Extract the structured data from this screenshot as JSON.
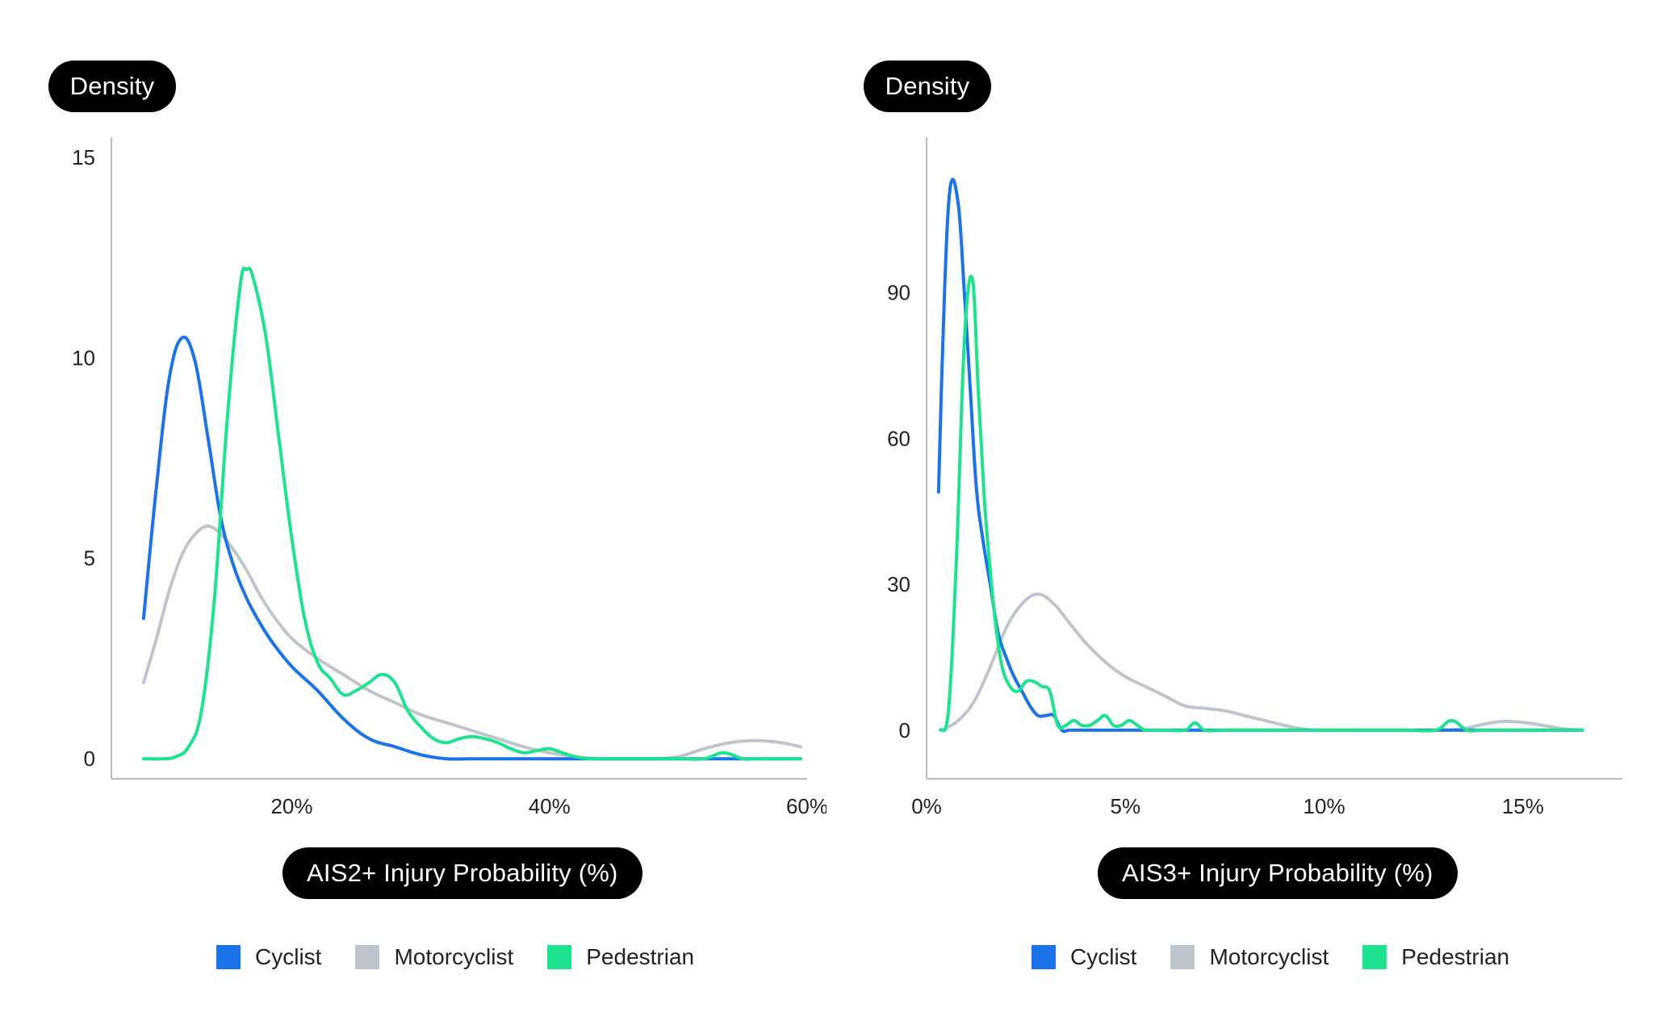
{
  "colors": {
    "cyclist": "#1a73e8",
    "motorcyclist": "#bfc5cc",
    "pedestrian": "#1de38e",
    "axis": "#bbbbbb"
  },
  "chart_data": [
    {
      "type": "line",
      "ylabel": "Density",
      "xlabel": "AIS2+ Injury Probability (%)",
      "xlim": [
        6,
        60
      ],
      "ylim": [
        -0.5,
        15.5
      ],
      "x_ticks": [
        {
          "v": 20,
          "label": "20%"
        },
        {
          "v": 40,
          "label": "40%"
        },
        {
          "v": 60,
          "label": "60%"
        }
      ],
      "y_ticks": [
        {
          "v": 0,
          "label": "0"
        },
        {
          "v": 5,
          "label": "5"
        },
        {
          "v": 10,
          "label": "10"
        },
        {
          "v": 15,
          "label": "15"
        }
      ],
      "legend_position": "bottom",
      "series": [
        {
          "name": "Cyclist",
          "color_key": "cyclist",
          "x": [
            8.5,
            9.5,
            10.5,
            11.5,
            12.5,
            13.5,
            14.5,
            15.5,
            16.5,
            17.5,
            18.5,
            20,
            22,
            24,
            26,
            28,
            30,
            32,
            34,
            36,
            38,
            40,
            42,
            44,
            46,
            48,
            50,
            52,
            54,
            56,
            58,
            59.5
          ],
          "y": [
            3.5,
            6.8,
            9.5,
            10.5,
            9.9,
            8.0,
            6.0,
            4.8,
            4.0,
            3.4,
            2.9,
            2.3,
            1.7,
            1.0,
            0.5,
            0.3,
            0.1,
            0,
            0,
            0,
            0,
            0,
            0,
            0,
            0,
            0,
            0,
            0,
            0,
            0,
            0,
            0
          ]
        },
        {
          "name": "Motorcyclist",
          "color_key": "motorcyclist",
          "x": [
            8.5,
            9.5,
            10.5,
            11.5,
            12.5,
            13.5,
            14.5,
            15.5,
            16.5,
            17.5,
            18.5,
            20,
            22,
            24,
            26,
            28,
            30,
            32,
            34,
            36,
            38,
            40,
            42,
            44,
            46,
            48,
            50,
            52,
            54,
            56,
            58,
            59.5
          ],
          "y": [
            1.9,
            3.0,
            4.2,
            5.1,
            5.6,
            5.8,
            5.6,
            5.2,
            4.7,
            4.1,
            3.6,
            3.0,
            2.5,
            2.1,
            1.7,
            1.4,
            1.1,
            0.9,
            0.7,
            0.5,
            0.3,
            0.15,
            0.05,
            0,
            0,
            0,
            0.05,
            0.25,
            0.4,
            0.45,
            0.4,
            0.3
          ]
        },
        {
          "name": "Pedestrian",
          "color_key": "pedestrian",
          "x": [
            8.5,
            10,
            11,
            12,
            13,
            14,
            15,
            16,
            16.5,
            17,
            18,
            19,
            20,
            21,
            22,
            23,
            24,
            25,
            26,
            27,
            28,
            29,
            30,
            31,
            32,
            33,
            34,
            35,
            36,
            37,
            38,
            39,
            40,
            41,
            42,
            43,
            44,
            46,
            48,
            50,
            52,
            53.5,
            55,
            56,
            58,
            59.5
          ],
          "y": [
            0,
            0,
            0.05,
            0.3,
            1.2,
            4.0,
            8.5,
            11.8,
            12.2,
            12.0,
            10.5,
            8.0,
            5.5,
            3.5,
            2.4,
            2.0,
            1.6,
            1.7,
            1.9,
            2.1,
            1.9,
            1.2,
            0.8,
            0.5,
            0.4,
            0.5,
            0.55,
            0.5,
            0.4,
            0.25,
            0.15,
            0.2,
            0.25,
            0.15,
            0.05,
            0,
            0,
            0,
            0,
            0,
            0,
            0.15,
            0,
            0,
            0,
            0
          ]
        }
      ]
    },
    {
      "type": "line",
      "ylabel": "Density",
      "xlabel": "AIS3+ Injury Probability (%)",
      "xlim": [
        0,
        17.5
      ],
      "ylim": [
        -10,
        122
      ],
      "x_ticks": [
        {
          "v": 0,
          "label": "0%"
        },
        {
          "v": 5,
          "label": "5%"
        },
        {
          "v": 10,
          "label": "10%"
        },
        {
          "v": 15,
          "label": "15%"
        }
      ],
      "y_ticks": [
        {
          "v": 0,
          "label": "0"
        },
        {
          "v": 30,
          "label": "30"
        },
        {
          "v": 60,
          "label": "60"
        },
        {
          "v": 90,
          "label": "90"
        }
      ],
      "legend_position": "bottom",
      "series": [
        {
          "name": "Cyclist",
          "color_key": "cyclist",
          "x": [
            0.3,
            0.45,
            0.6,
            0.8,
            0.95,
            1.1,
            1.25,
            1.4,
            1.6,
            1.8,
            2.0,
            2.2,
            2.4,
            2.6,
            2.8,
            3.0,
            3.2,
            3.4,
            3.6,
            4.0,
            5.0,
            6.0,
            7.0,
            8.0,
            10,
            12,
            13,
            14,
            15,
            16.5
          ],
          "y": [
            49,
            90,
            112,
            108,
            90,
            70,
            50,
            40,
            30,
            20,
            15,
            11,
            8,
            5,
            3,
            3,
            3,
            0,
            0,
            0,
            0,
            0,
            0,
            0,
            0,
            0,
            0,
            0,
            0,
            0
          ]
        },
        {
          "name": "Motorcyclist",
          "color_key": "motorcyclist",
          "x": [
            0.4,
            0.8,
            1.2,
            1.6,
            2.0,
            2.4,
            2.8,
            3.2,
            3.6,
            4.0,
            4.5,
            5.0,
            5.5,
            6.0,
            6.5,
            7.0,
            7.5,
            8.0,
            8.5,
            9.0,
            9.5,
            10,
            11,
            12,
            13,
            13.5,
            14,
            14.5,
            15,
            15.5,
            16,
            16.5
          ],
          "y": [
            0,
            2,
            6,
            13,
            21,
            26,
            28,
            26,
            22,
            18,
            14,
            11,
            9,
            7,
            5,
            4.5,
            4,
            3,
            2,
            1,
            0.2,
            0,
            0,
            0,
            0,
            0.3,
            1.2,
            1.8,
            1.6,
            1,
            0.3,
            0
          ]
        },
        {
          "name": "Pedestrian",
          "color_key": "pedestrian",
          "x": [
            0.35,
            0.55,
            0.75,
            0.95,
            1.15,
            1.3,
            1.45,
            1.6,
            1.75,
            1.9,
            2.1,
            2.3,
            2.5,
            2.7,
            2.9,
            3.1,
            3.3,
            3.5,
            3.7,
            3.9,
            4.1,
            4.3,
            4.5,
            4.7,
            4.9,
            5.1,
            5.3,
            5.5,
            5.7,
            6.0,
            6.5,
            6.75,
            7.0,
            7.5,
            8.0,
            9.0,
            10,
            11,
            12,
            12.8,
            13.2,
            13.6,
            14,
            15,
            16.5
          ],
          "y": [
            0,
            4,
            35,
            80,
            93,
            70,
            48,
            33,
            21,
            13,
            9,
            8,
            10,
            10,
            9,
            8,
            1,
            1,
            2,
            1,
            1,
            2,
            3,
            1,
            1,
            2,
            1,
            0,
            0,
            0,
            0,
            1.5,
            0,
            0,
            0,
            0,
            0,
            0,
            0,
            0,
            2,
            0,
            0,
            0,
            0
          ]
        }
      ]
    }
  ]
}
